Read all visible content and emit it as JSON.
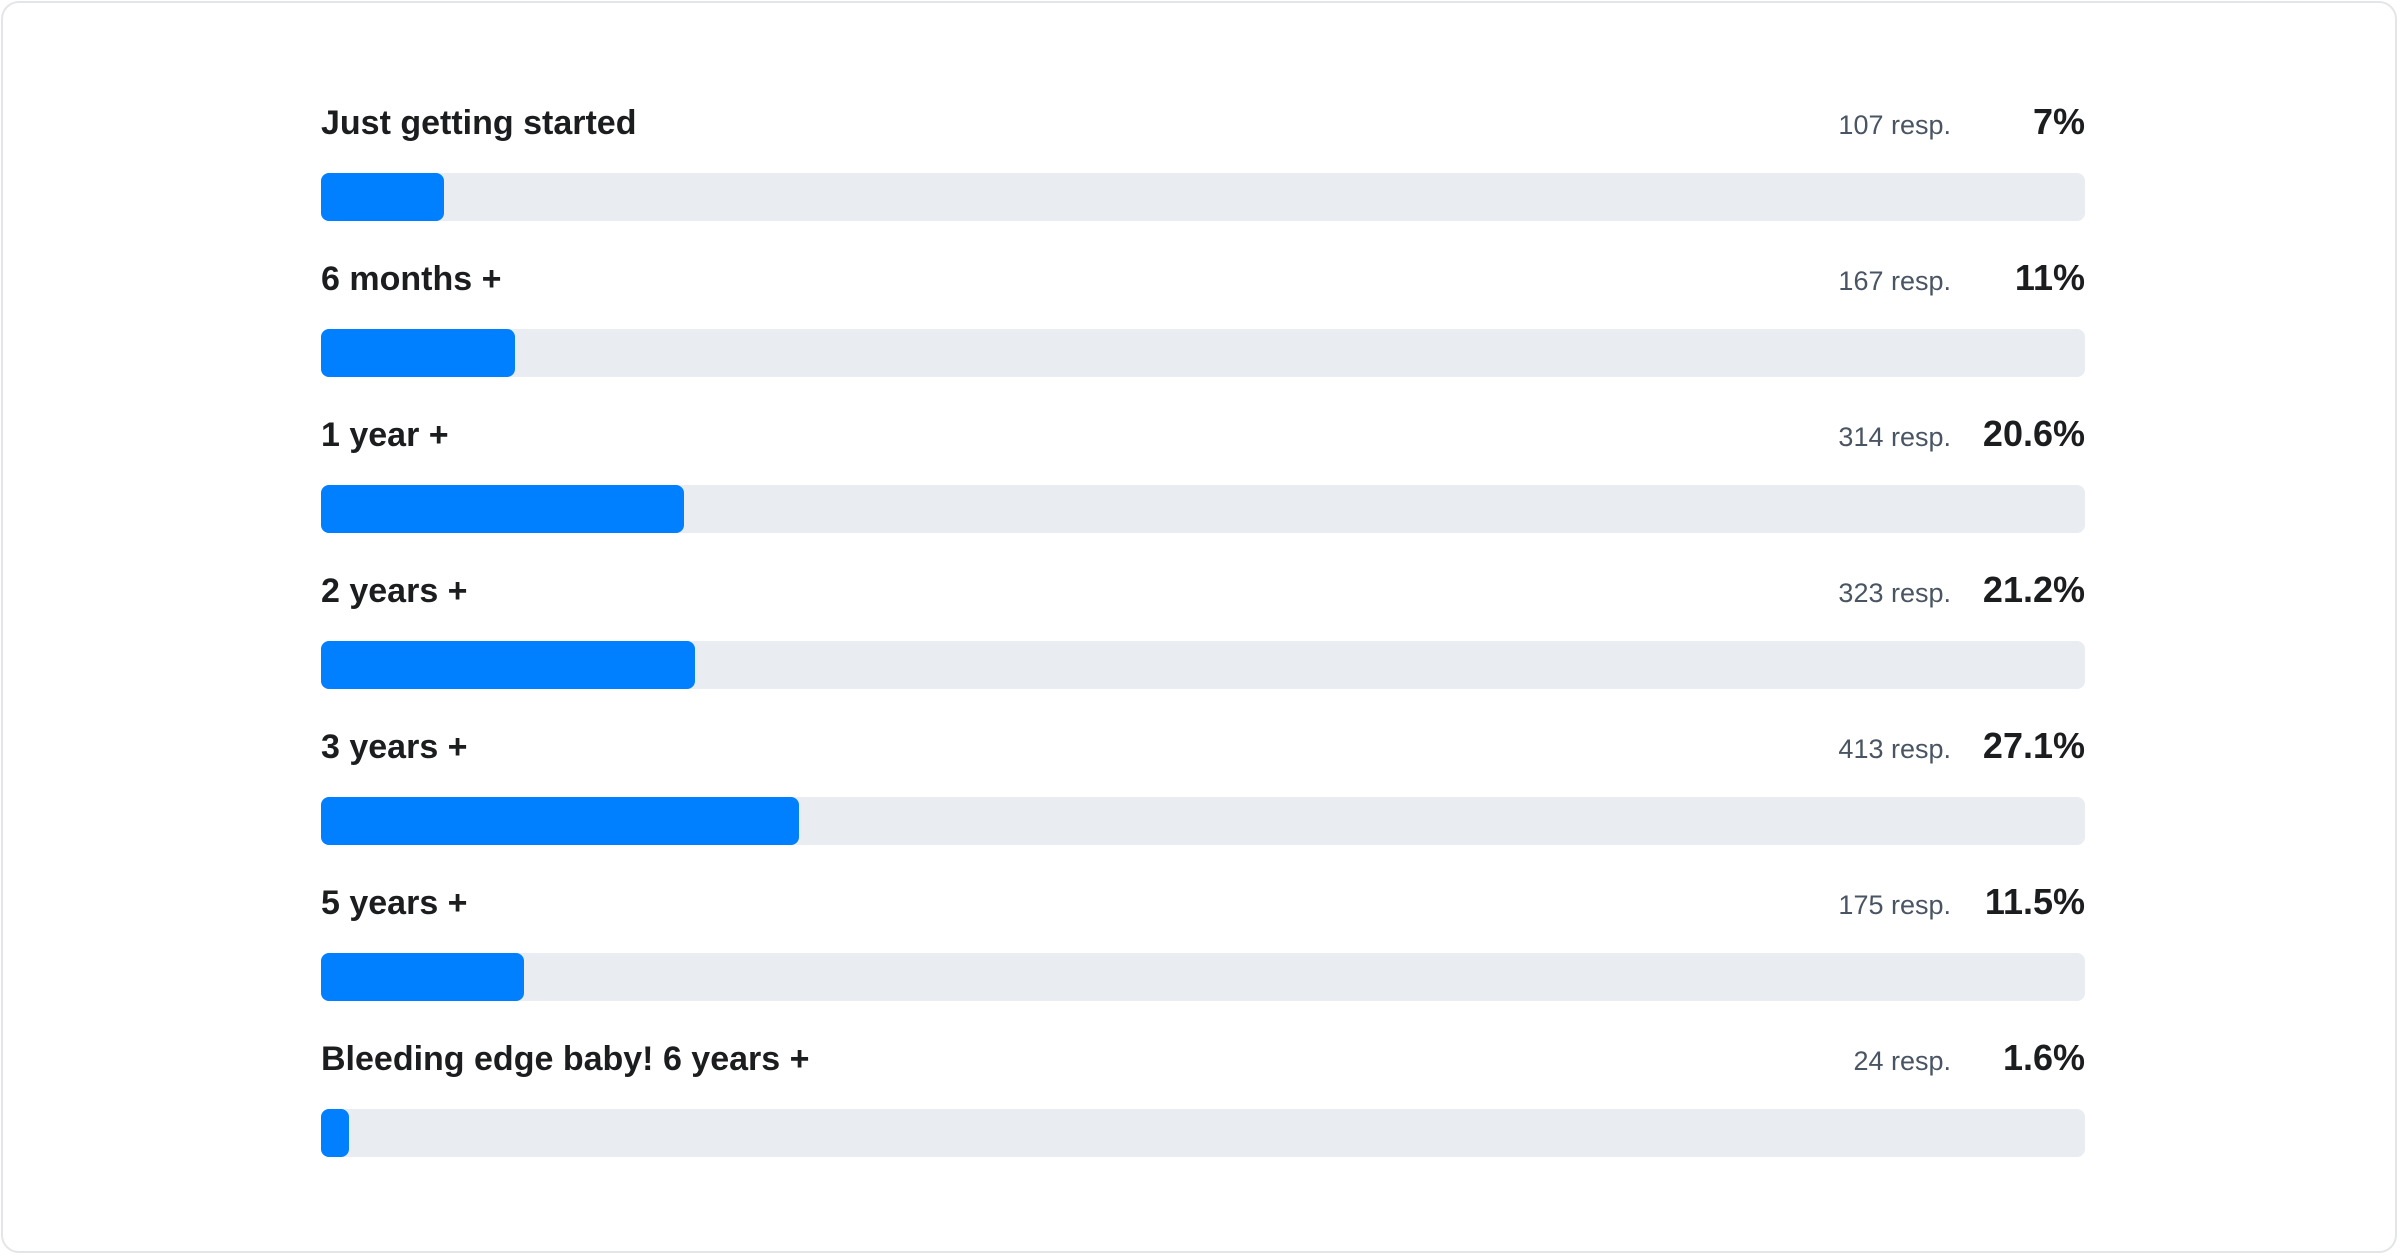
{
  "chart_data": {
    "type": "bar",
    "orientation": "horizontal",
    "categories": [
      "Just getting started",
      "6 months +",
      "1 year +",
      "2 years +",
      "3 years +",
      "5 years +",
      "Bleeding edge baby! 6 years +"
    ],
    "responses": [
      "107 resp.",
      "167 resp.",
      "314 resp.",
      "323 resp.",
      "413 resp.",
      "175 resp.",
      "24 resp."
    ],
    "percent_labels": [
      "7%",
      "11%",
      "20.6%",
      "21.2%",
      "27.1%",
      "11.5%",
      "1.6%"
    ],
    "values": [
      7,
      11,
      20.6,
      21.2,
      27.1,
      11.5,
      1.6
    ],
    "xlim": [
      0,
      100
    ],
    "colors": {
      "bar": "#0080ff",
      "track": "#e9ecf1"
    }
  }
}
